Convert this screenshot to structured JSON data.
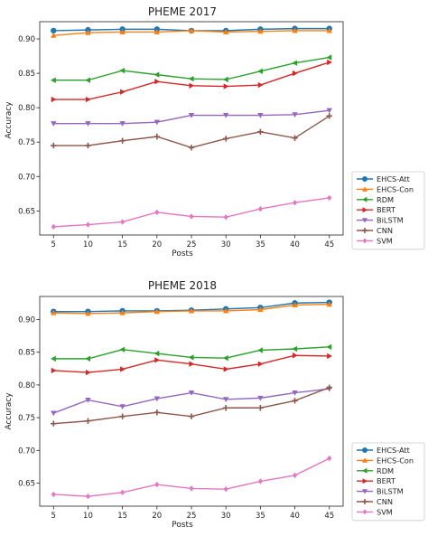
{
  "chart_data": [
    {
      "type": "line",
      "title": "PHEME 2017",
      "xlabel": "Posts",
      "ylabel": "Accuracy",
      "x": [
        5,
        10,
        15,
        20,
        25,
        30,
        35,
        40,
        45
      ],
      "xticks": [
        "5",
        "10",
        "15",
        "20",
        "25",
        "30",
        "35",
        "40",
        "45"
      ],
      "xlim": [
        3,
        47
      ],
      "ylim": [
        0.615,
        0.925
      ],
      "yticks": [
        0.65,
        0.7,
        0.75,
        0.8,
        0.85,
        0.9
      ],
      "ytick_labels": [
        "0.65",
        "0.70",
        "0.75",
        "0.80",
        "0.85",
        "0.90"
      ],
      "grid": false,
      "legend": "outside-right",
      "series": [
        {
          "name": "EHCS-Att",
          "color": "#1f77b4",
          "marker": "circle",
          "values": [
            0.912,
            0.913,
            0.914,
            0.914,
            0.912,
            0.912,
            0.914,
            0.915,
            0.915
          ]
        },
        {
          "name": "EHCS-Con",
          "color": "#ff7f0e",
          "marker": "triangle-up",
          "values": [
            0.905,
            0.909,
            0.91,
            0.91,
            0.912,
            0.91,
            0.911,
            0.912,
            0.912
          ]
        },
        {
          "name": "RDM",
          "color": "#2ca02c",
          "marker": "triangle-left",
          "values": [
            0.84,
            0.84,
            0.854,
            0.848,
            0.842,
            0.841,
            0.853,
            0.865,
            0.873
          ]
        },
        {
          "name": "BERT",
          "color": "#d62728",
          "marker": "triangle-right",
          "values": [
            0.812,
            0.812,
            0.823,
            0.838,
            0.832,
            0.831,
            0.833,
            0.85,
            0.866
          ]
        },
        {
          "name": "BiLSTM",
          "color": "#9467bd",
          "marker": "triangle-down",
          "values": [
            0.777,
            0.777,
            0.777,
            0.779,
            0.789,
            0.789,
            0.789,
            0.79,
            0.796
          ]
        },
        {
          "name": "CNN",
          "color": "#8c564b",
          "marker": "plus",
          "values": [
            0.745,
            0.745,
            0.752,
            0.758,
            0.742,
            0.755,
            0.765,
            0.756,
            0.788
          ]
        },
        {
          "name": "SVM",
          "color": "#e377c2",
          "marker": "diamond",
          "values": [
            0.627,
            0.63,
            0.634,
            0.648,
            0.642,
            0.641,
            0.653,
            0.662,
            0.669
          ]
        }
      ]
    },
    {
      "type": "line",
      "title": "PHEME 2018",
      "xlabel": "Posts",
      "ylabel": "Accuracy",
      "x": [
        5,
        10,
        15,
        20,
        25,
        30,
        35,
        40,
        45
      ],
      "xticks": [
        "5",
        "10",
        "15",
        "20",
        "25",
        "30",
        "35",
        "40",
        "45"
      ],
      "xlim": [
        3,
        47
      ],
      "ylim": [
        0.615,
        0.935
      ],
      "yticks": [
        0.65,
        0.7,
        0.75,
        0.8,
        0.85,
        0.9
      ],
      "ytick_labels": [
        "0.65",
        "0.70",
        "0.75",
        "0.80",
        "0.85",
        "0.90"
      ],
      "grid": false,
      "legend": "outside-right",
      "series": [
        {
          "name": "EHCS-Att",
          "color": "#1f77b4",
          "marker": "circle",
          "values": [
            0.912,
            0.912,
            0.913,
            0.913,
            0.914,
            0.916,
            0.918,
            0.925,
            0.926
          ]
        },
        {
          "name": "EHCS-Con",
          "color": "#ff7f0e",
          "marker": "triangle-up",
          "values": [
            0.91,
            0.909,
            0.91,
            0.912,
            0.913,
            0.913,
            0.915,
            0.922,
            0.923
          ]
        },
        {
          "name": "RDM",
          "color": "#2ca02c",
          "marker": "triangle-left",
          "values": [
            0.84,
            0.84,
            0.854,
            0.848,
            0.842,
            0.841,
            0.853,
            0.855,
            0.858
          ]
        },
        {
          "name": "BERT",
          "color": "#d62728",
          "marker": "triangle-right",
          "values": [
            0.822,
            0.819,
            0.824,
            0.838,
            0.832,
            0.824,
            0.832,
            0.845,
            0.844
          ]
        },
        {
          "name": "BiLSTM",
          "color": "#9467bd",
          "marker": "triangle-down",
          "values": [
            0.757,
            0.777,
            0.767,
            0.779,
            0.788,
            0.778,
            0.78,
            0.788,
            0.794
          ]
        },
        {
          "name": "CNN",
          "color": "#8c564b",
          "marker": "plus",
          "values": [
            0.741,
            0.745,
            0.752,
            0.758,
            0.752,
            0.765,
            0.765,
            0.776,
            0.796
          ]
        },
        {
          "name": "SVM",
          "color": "#e377c2",
          "marker": "diamond",
          "values": [
            0.633,
            0.63,
            0.636,
            0.648,
            0.642,
            0.641,
            0.653,
            0.662,
            0.688
          ]
        }
      ]
    }
  ]
}
